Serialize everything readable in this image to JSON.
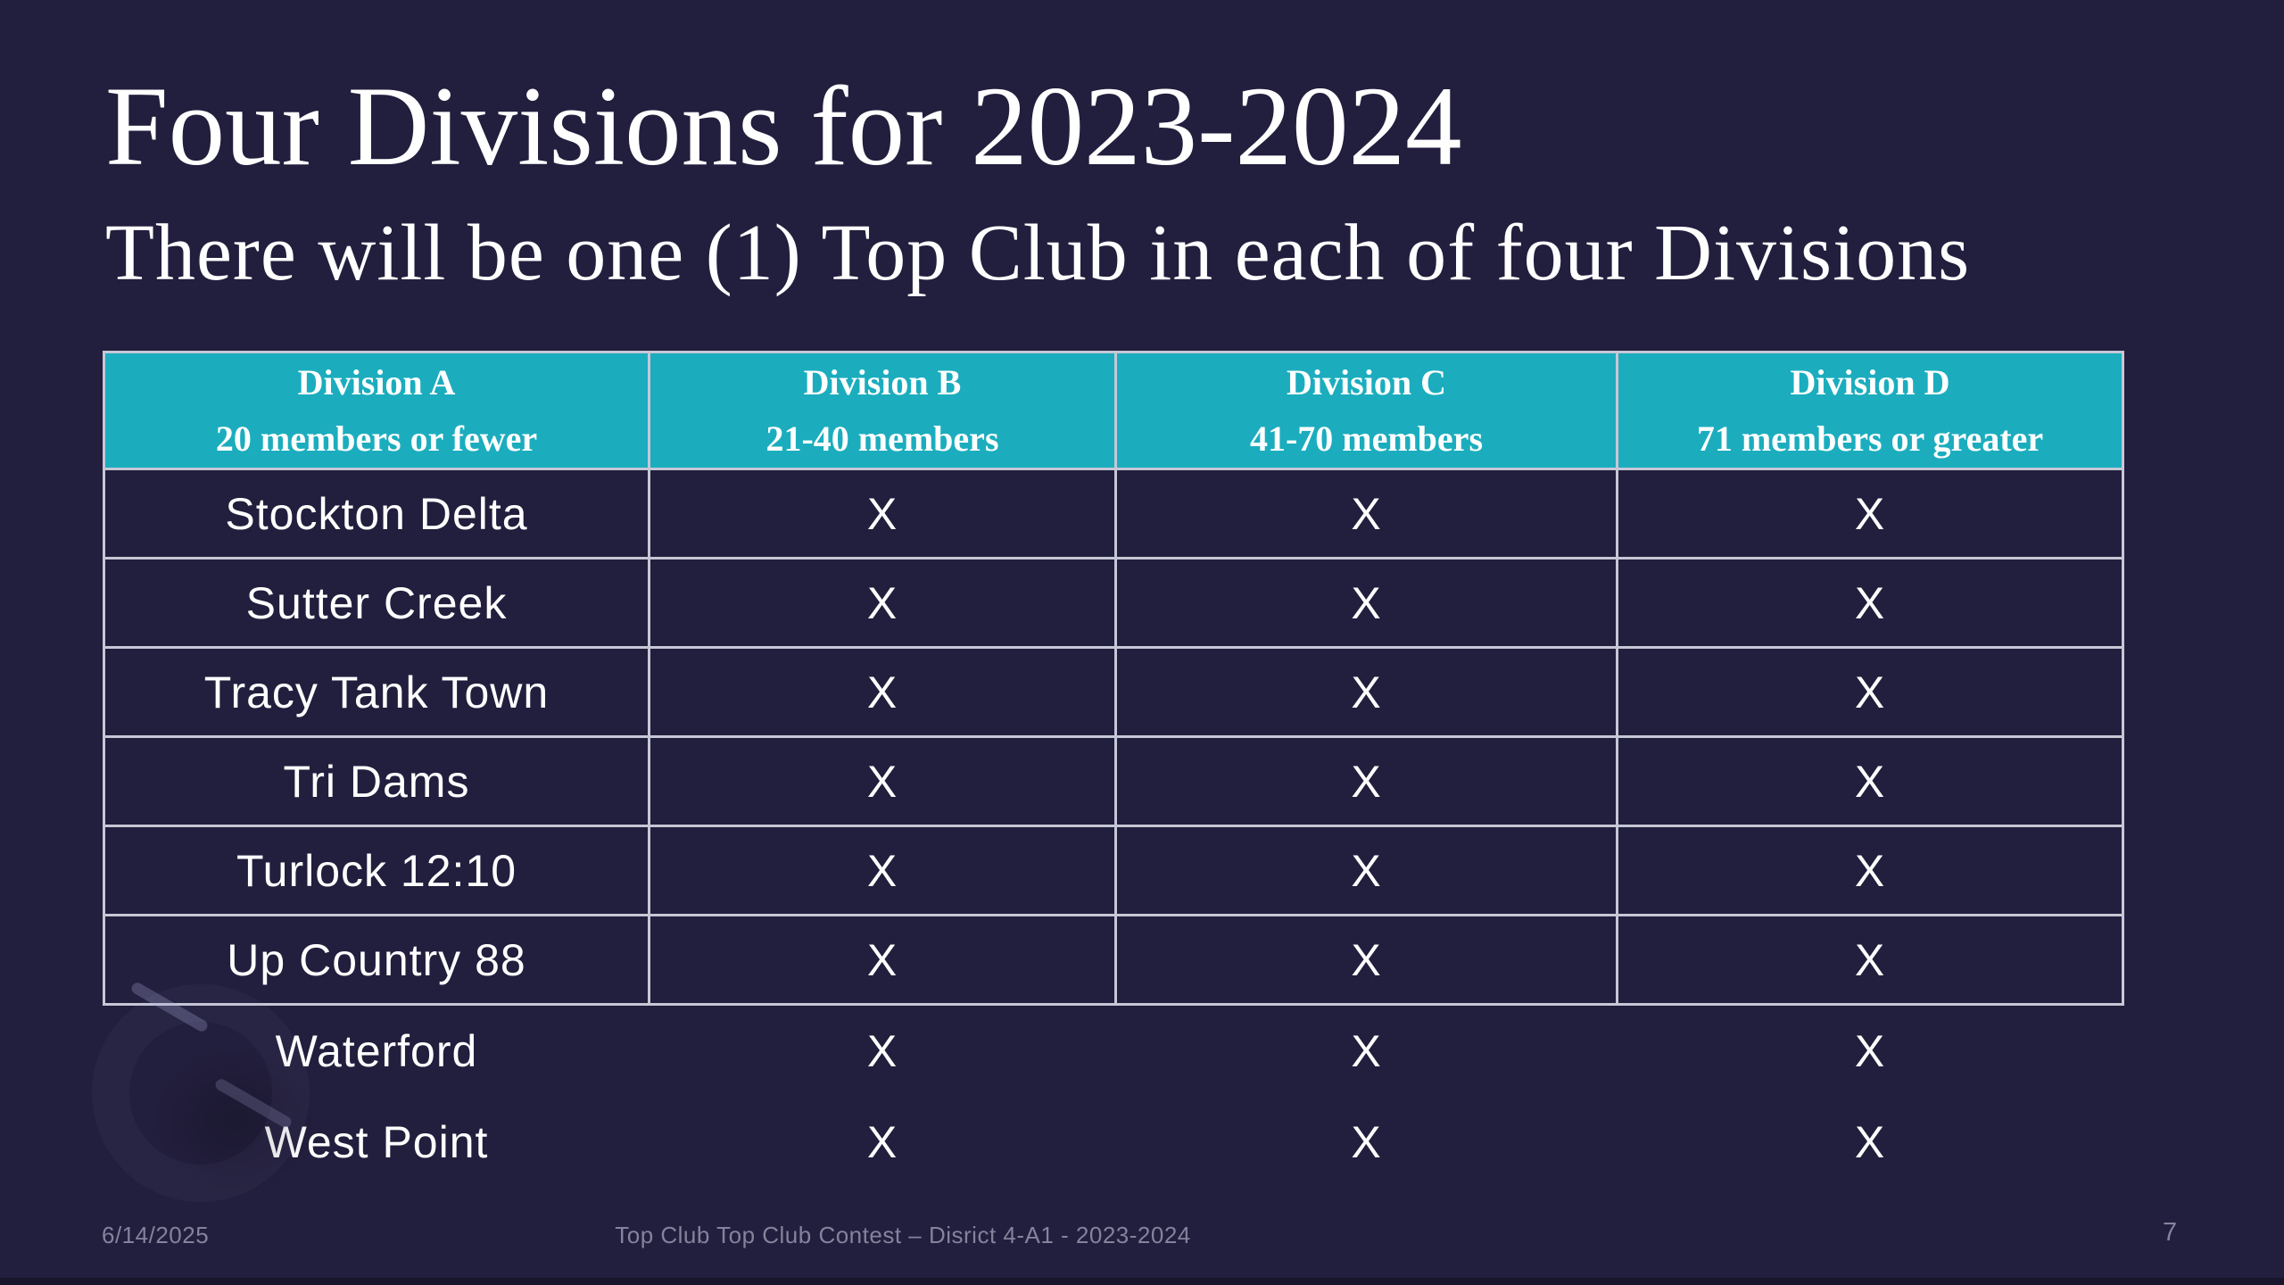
{
  "slide": {
    "title": "Four Divisions for 2023-2024",
    "subtitle": "There will be one (1) Top Club in each of four Divisions",
    "footer_date": "6/14/2025",
    "footer_center": "Top Club Top Club Contest – Disrict 4-A1 - 2023-2024",
    "page_number": "7"
  },
  "colors": {
    "background": "#221e3d",
    "header_fill": "#1badbe",
    "table_border": "#c6c7d6",
    "text": "#ffffff",
    "footer_text": "#85829c"
  },
  "table": {
    "columns": [
      {
        "title": "Division A",
        "subtitle": "20 members or fewer"
      },
      {
        "title": "Division B",
        "subtitle": "21-40 members"
      },
      {
        "title": "Division C",
        "subtitle": "41-70 members"
      },
      {
        "title": "Division D",
        "subtitle": "71 members or greater"
      }
    ],
    "rows": [
      {
        "club": "Stockton Delta",
        "marks": [
          "X",
          "X",
          "X"
        ],
        "bordered": true
      },
      {
        "club": "Sutter Creek",
        "marks": [
          "X",
          "X",
          "X"
        ],
        "bordered": true
      },
      {
        "club": "Tracy Tank Town",
        "marks": [
          "X",
          "X",
          "X"
        ],
        "bordered": true
      },
      {
        "club": "Tri Dams",
        "marks": [
          "X",
          "X",
          "X"
        ],
        "bordered": true
      },
      {
        "club": "Turlock 12:10",
        "marks": [
          "X",
          "X",
          "X"
        ],
        "bordered": true
      },
      {
        "club": "Up Country 88",
        "marks": [
          "X",
          "X",
          "X"
        ],
        "bordered": true
      },
      {
        "club": "Waterford",
        "marks": [
          "X",
          "X",
          "X"
        ],
        "bordered": false
      },
      {
        "club": "West Point",
        "marks": [
          "X",
          "X",
          "X"
        ],
        "bordered": false
      }
    ]
  }
}
